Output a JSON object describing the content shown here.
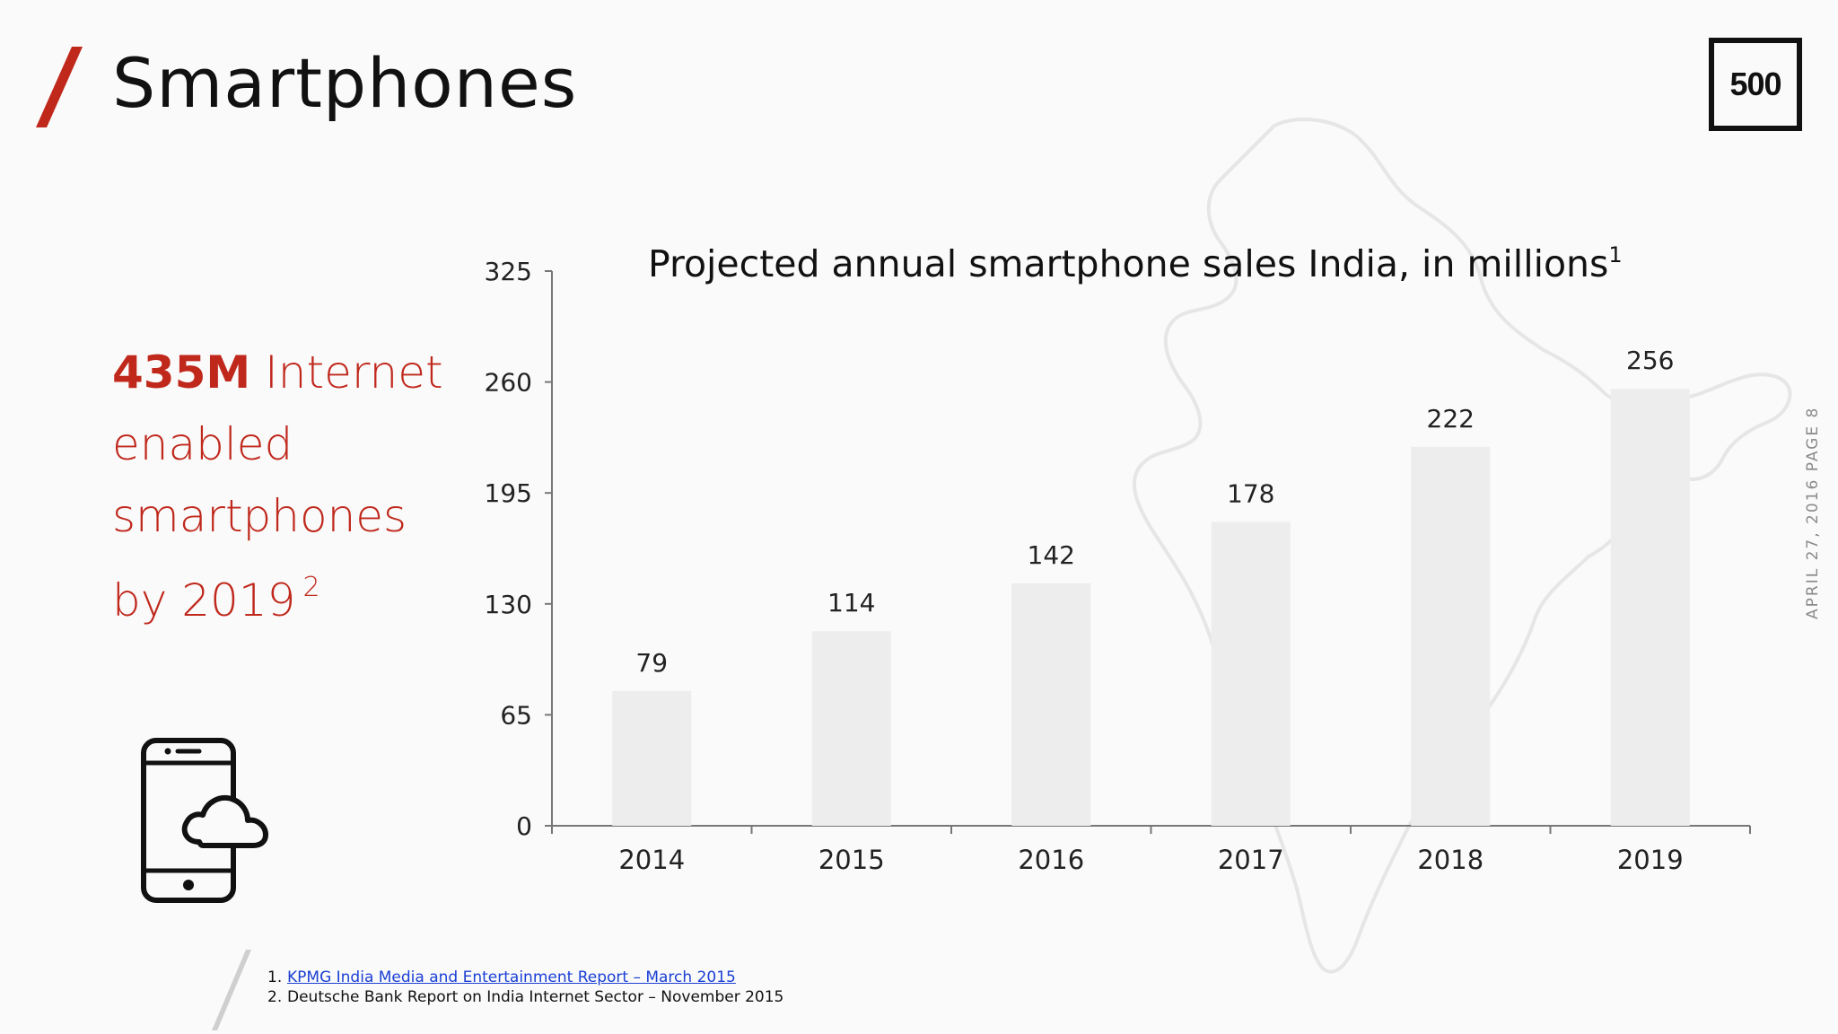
{
  "slide": {
    "title": "Smartphones",
    "logo_text": "500",
    "side_label": "APRIL 27, 2016 PAGE 8",
    "accent_color": "#c0281c"
  },
  "callout": {
    "highlight": "435M",
    "line1_rest": "Internet",
    "line2": "enabled",
    "line3": "smartphones",
    "line4": "by 2019",
    "footnote_ref": "2"
  },
  "footnotes": [
    {
      "number": "1.",
      "text": "KPMG India Media and Entertainment Report – March 2015",
      "is_link": true
    },
    {
      "number": "2.",
      "text": "Deutsche Bank Report on India Internet Sector – November 2015",
      "is_link": false
    }
  ],
  "icons": {
    "phone": "smartphone-cloud-icon",
    "map": "india-map-icon",
    "slash": "slash-mark-icon"
  },
  "chart_data": {
    "type": "bar",
    "title": "Projected annual smartphone sales India, in millions",
    "title_footnote": "1",
    "categories": [
      "2014",
      "2015",
      "2016",
      "2017",
      "2018",
      "2019"
    ],
    "values": [
      79,
      114,
      142,
      178,
      222,
      256
    ],
    "data_labels": [
      "79",
      "114",
      "142",
      "178",
      "222",
      "256"
    ],
    "yticks": [
      0,
      65,
      130,
      195,
      260,
      325
    ],
    "ylim": [
      0,
      325
    ],
    "xlabel": "",
    "ylabel": "",
    "grid": false,
    "bar_color": "#ededee"
  }
}
